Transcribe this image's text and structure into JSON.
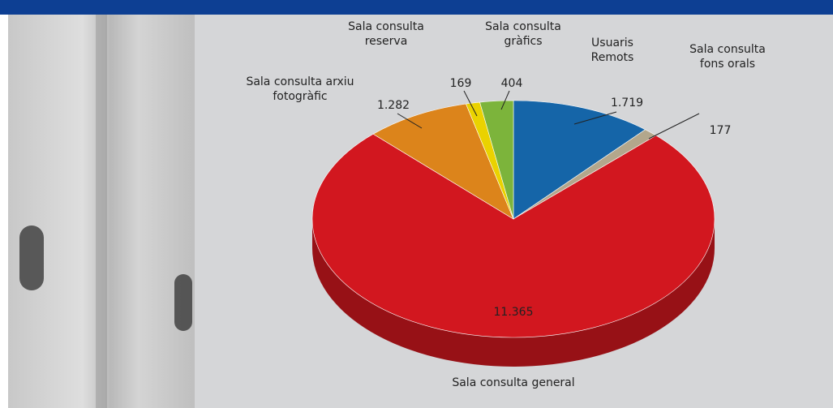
{
  "chart_data": {
    "type": "pie",
    "categories": [
      "Usuaris Remots",
      "Sala consulta fons orals",
      "Sala consulta general",
      "Sala consulta arxiu fotogràfic",
      "Sala consulta reserva",
      "Sala consulta gràfics"
    ],
    "values": [
      1719,
      177,
      11365,
      1282,
      169,
      404
    ],
    "value_labels": [
      "1.719",
      "177",
      "11.365",
      "1.282",
      "169",
      "404"
    ],
    "colors": [
      "#1565a8",
      "#b3a78c",
      "#d2171f",
      "#dc841b",
      "#ead200",
      "#7cb43b"
    ]
  }
}
